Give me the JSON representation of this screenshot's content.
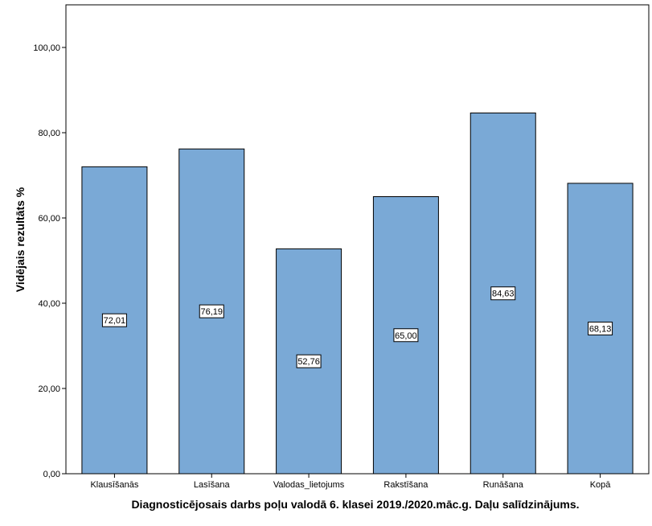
{
  "chart_data": {
    "type": "bar",
    "title": "",
    "xlabel": "Diagnosticējosais darbs poļu valodā 6. klasei 2019./2020.māc.g. Daļu salīdzinājums.",
    "ylabel": "Vidējais rezultāts %",
    "categories": [
      "Klausīšanās",
      "Lasīšana",
      "Valodas_lietojums",
      "Rakstīšana",
      "Runāšana",
      "Kopā"
    ],
    "values": [
      72.01,
      76.19,
      52.76,
      65.0,
      84.63,
      68.13
    ],
    "value_labels": [
      "72,01",
      "76,19",
      "52,76",
      "65,00",
      "84,63",
      "68,13"
    ],
    "ylim": [
      0,
      110
    ],
    "yticks": [
      0,
      20,
      40,
      60,
      80,
      100
    ],
    "ytick_labels": [
      "0,00",
      "20,00",
      "40,00",
      "60,00",
      "80,00",
      "100,00"
    ],
    "grid": false,
    "legend": "none",
    "colors": {
      "bar_fill": "#7AA9D6",
      "bar_stroke": "#000000",
      "axis": "#000000",
      "label_box_fill": "#ffffff"
    }
  }
}
